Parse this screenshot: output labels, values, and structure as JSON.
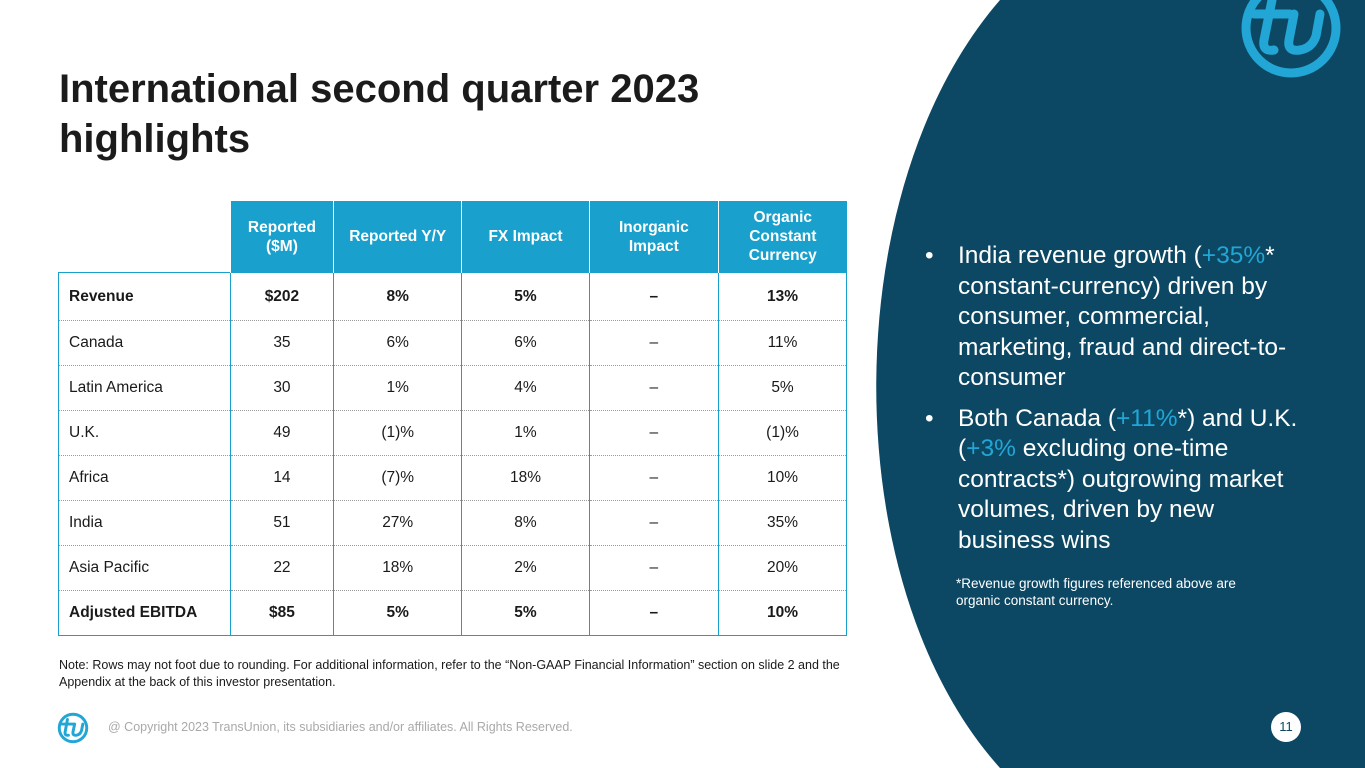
{
  "slide": {
    "title": "International second quarter 2023 highlights",
    "page_number": "11"
  },
  "brand": {
    "navy": "#0c4863",
    "accent": "#1aa0cc",
    "logo_icon": "tu-logo-icon"
  },
  "table": {
    "headers": [
      "Reported ($M)",
      "Reported Y/Y",
      "FX Impact",
      "Inorganic Impact",
      "Organic Constant Currency"
    ],
    "rows": [
      [
        "Revenue",
        "$202",
        "8%",
        "5%",
        "–",
        "13%"
      ],
      [
        "Canada",
        "35",
        "6%",
        "6%",
        "–",
        "11%"
      ],
      [
        "Latin America",
        "30",
        "1%",
        "4%",
        "–",
        "5%"
      ],
      [
        "U.K.",
        "49",
        "(1)%",
        "1%",
        "–",
        "(1)%"
      ],
      [
        "Africa",
        "14",
        "(7)%",
        "18%",
        "–",
        "10%"
      ],
      [
        "India",
        "51",
        "27%",
        "8%",
        "–",
        "35%"
      ],
      [
        "Asia Pacific",
        "22",
        "18%",
        "2%",
        "–",
        "20%"
      ],
      [
        "Adjusted EBITDA",
        "$85",
        "5%",
        "5%",
        "–",
        "10%"
      ]
    ]
  },
  "note": "Note: Rows may not foot due to rounding. For additional information, refer to the “Non-GAAP Financial Information” section on slide 2 and the Appendix at the back of this investor presentation.",
  "copyright": "@ Copyright 2023 TransUnion, its subsidiaries and/or affiliates.  All Rights Reserved.",
  "bullets": {
    "marker": "•",
    "b1": {
      "t1": "India revenue growth (",
      "h1": "+35%",
      "t2": "* constant-currency) driven by consumer, commercial, marketing, fraud and direct-to-consumer"
    },
    "b2": {
      "t1": "Both Canada (",
      "h1": "+11%",
      "t2": "*) and U.K. (",
      "h2": "+3%",
      "t3": " excluding one-time contracts*) outgrowing market volumes, driven by new business wins"
    }
  },
  "footnote": "*Revenue growth figures referenced above are organic constant currency."
}
